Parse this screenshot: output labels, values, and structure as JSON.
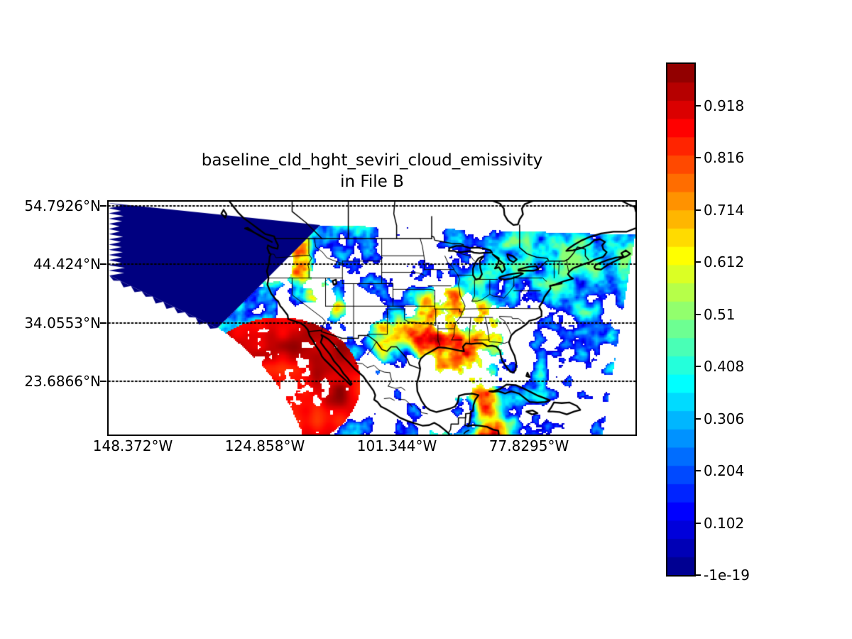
{
  "figure": {
    "title_line1": "baseline_cld_hght_seviri_cloud_emissivity",
    "title_line2": "in File B",
    "background_color": "#ffffff",
    "line_color": "#000000",
    "nodata_wedge_color": "#000080",
    "colormap": "jet"
  },
  "map": {
    "yticks": [
      {
        "label": "54.7926°N",
        "lat": 54.7926
      },
      {
        "label": "44.424°N",
        "lat": 44.424
      },
      {
        "label": "34.0553°N",
        "lat": 34.0553
      },
      {
        "label": "23.6866°N",
        "lat": 23.6866
      }
    ],
    "xticks": [
      {
        "label": "148.372°W",
        "lon": -148.372
      },
      {
        "label": "124.858°W",
        "lon": -124.858
      },
      {
        "label": "101.344°W",
        "lon": -101.344
      },
      {
        "label": "77.8295°W",
        "lon": -77.8295
      }
    ]
  },
  "colorbar": {
    "ticks": [
      {
        "label": "0.918",
        "value": 0.918
      },
      {
        "label": "0.816",
        "value": 0.816
      },
      {
        "label": "0.714",
        "value": 0.714
      },
      {
        "label": "0.612",
        "value": 0.612
      },
      {
        "label": "0.51",
        "value": 0.51
      },
      {
        "label": "0.408",
        "value": 0.408
      },
      {
        "label": "0.306",
        "value": 0.306
      },
      {
        "label": "0.204",
        "value": 0.204
      },
      {
        "label": "0.102",
        "value": 0.102
      },
      {
        "label": "-1e-19",
        "value": 0
      }
    ],
    "value_min": -1e-19,
    "value_max": 1.0
  },
  "chart_data": {
    "type": "heatmap",
    "title": "baseline_cld_hght_seviri_cloud_emissivity in File B",
    "variable": "baseline_cld_hght_seviri_cloud_emissivity",
    "projection": "cylindrical equidistant, North America / Gulf of Mexico / Caribbean",
    "lon_tick_labels": [
      "148.372°W",
      "124.858°W",
      "101.344°W",
      "77.8295°W"
    ],
    "lat_tick_labels": [
      "54.7926°N",
      "44.424°N",
      "34.0553°N",
      "23.6866°N"
    ],
    "lon_ticks_deg": [
      -148.372,
      -124.858,
      -101.344,
      -77.8295
    ],
    "lat_ticks_deg": [
      54.7926,
      44.424,
      34.0553,
      23.6866
    ],
    "lon_range_deg": [
      -152.8,
      -58.9
    ],
    "lat_range_deg": [
      14.2,
      55.7
    ],
    "colorbar_ticks": [
      0.918,
      0.816,
      0.714,
      0.612,
      0.51,
      0.408,
      0.306,
      0.204,
      0.102,
      -1e-19
    ],
    "value_range": [
      -1e-19,
      1.0
    ],
    "colormap": "jet",
    "gridlines": "dotted horizontal parallels at labeled latitudes",
    "features": [
      "dark navy wedge of zero emissivity (SEVIRI scan edge) over the northeast Pacific, feathered left edge",
      "large dark-red high-emissivity blob with white speckle holes offshore Baja California",
      "mixed red/orange/yellow cloud field with cyan-blue fringes over the eastern and central US",
      "large white (clear-sky) area over the central/southwestern US and interior Mexico",
      "blue-cyan swirl bands over the Gulf of Mexico, Caribbean and western Atlantic",
      "black coastlines and state/province borders drawn over the field",
      "data region bounded by curved satellite-disk edges on the lower-left and right"
    ]
  }
}
